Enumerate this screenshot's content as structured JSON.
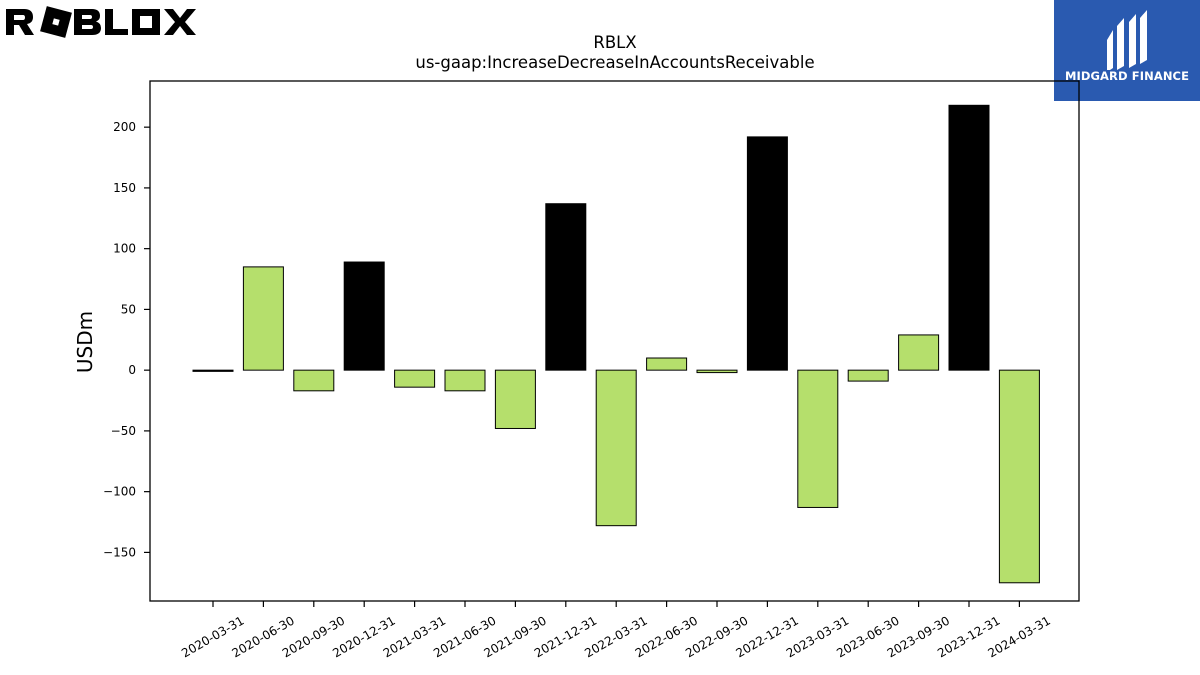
{
  "logos": {
    "left_text": "ROBLOX",
    "right_text": "MIDGARD FINANCE"
  },
  "colors": {
    "negative_bar": "#b5df6c",
    "positive_bar": "#000000",
    "logo_right_bg": "#2a5ab0"
  },
  "chart_data": {
    "type": "bar",
    "title": "RBLX",
    "subtitle": "us-gaap:IncreaseDecreaseInAccountsReceivable",
    "ylabel": "USDm",
    "xlabel": "",
    "ylim": [
      -190,
      238
    ],
    "yticks": [
      -150,
      -100,
      -50,
      0,
      50,
      100,
      150,
      200
    ],
    "ytick_labels": [
      "−150",
      "−100",
      "−50",
      "0",
      "50",
      "100",
      "150",
      "200"
    ],
    "categories": [
      "2020-03-31",
      "2020-06-30",
      "2020-09-30",
      "2020-12-31",
      "2021-03-31",
      "2021-06-30",
      "2021-09-30",
      "2021-12-31",
      "2022-03-31",
      "2022-06-30",
      "2022-09-30",
      "2022-12-31",
      "2023-03-31",
      "2023-06-30",
      "2023-09-30",
      "2023-12-31",
      "2024-03-31"
    ],
    "values": [
      -1,
      85,
      -17,
      89,
      -14,
      -17,
      -48,
      137,
      -128,
      10,
      -2,
      192,
      -113,
      -9,
      29,
      218,
      -175
    ],
    "fill_colors": [
      "#000000",
      "#b5df6c",
      "#b5df6c",
      "#000000",
      "#b5df6c",
      "#b5df6c",
      "#b5df6c",
      "#000000",
      "#b5df6c",
      "#b5df6c",
      "#b5df6c",
      "#000000",
      "#b5df6c",
      "#b5df6c",
      "#b5df6c",
      "#000000",
      "#b5df6c"
    ],
    "grid": false,
    "legend": "none"
  }
}
